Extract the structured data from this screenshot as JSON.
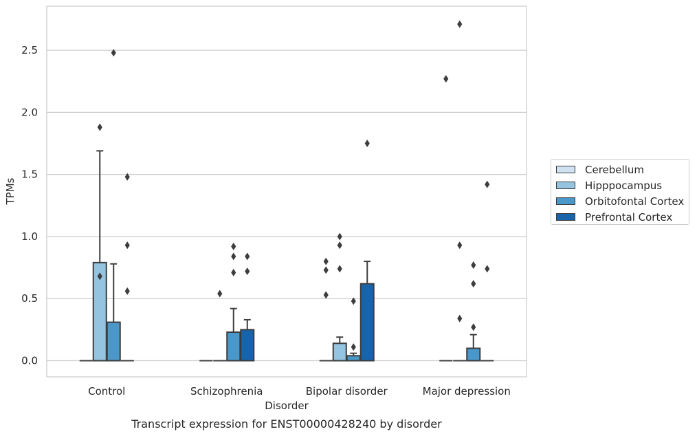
{
  "chart_data": {
    "type": "box",
    "caption": "Transcript expression for ENST00000428240 by disorder",
    "xlabel": "Disorder",
    "ylabel": "TPMs",
    "ylim": [
      -0.13,
      2.855
    ],
    "yticks": [
      0.0,
      0.5,
      1.0,
      1.5,
      2.0,
      2.5
    ],
    "ytick_labels": [
      "0.0",
      "0.5",
      "1.0",
      "1.5",
      "2.0",
      "2.5"
    ],
    "grid": "horizontal",
    "legend_position": "right",
    "categories": [
      "Control",
      "Schizophrenia",
      "Bipolar disorder",
      "Major depression"
    ],
    "series": [
      {
        "name": "Cerebellum",
        "color": "#d0e1f2",
        "boxes": [
          {
            "q1": 0,
            "median": 0,
            "q3": 0,
            "whisker_low": 0,
            "whisker_high": 0,
            "outliers": []
          },
          {
            "q1": 0,
            "median": 0,
            "q3": 0,
            "whisker_low": 0,
            "whisker_high": 0,
            "outliers": []
          },
          {
            "q1": 0,
            "median": 0,
            "q3": 0,
            "whisker_low": 0,
            "whisker_high": 0,
            "outliers": [
              0.53,
              0.73,
              0.8
            ]
          },
          {
            "q1": 0,
            "median": 0,
            "q3": 0,
            "whisker_low": 0,
            "whisker_high": 0,
            "outliers": [
              2.27
            ]
          }
        ]
      },
      {
        "name": "Hipppocampus",
        "color": "#94c4df",
        "boxes": [
          {
            "q1": 0,
            "median": 0,
            "q3": 0.79,
            "whisker_low": 0,
            "whisker_high": 1.69,
            "outliers": [
              0.68,
              1.88
            ]
          },
          {
            "q1": 0,
            "median": 0,
            "q3": 0,
            "whisker_low": 0,
            "whisker_high": 0,
            "outliers": [
              0.54
            ]
          },
          {
            "q1": 0,
            "median": 0,
            "q3": 0.14,
            "whisker_low": 0,
            "whisker_high": 0.19,
            "outliers": [
              0.74,
              0.93,
              1.0
            ]
          },
          {
            "q1": 0,
            "median": 0,
            "q3": 0,
            "whisker_low": 0,
            "whisker_high": 0,
            "outliers": [
              0.34,
              0.93,
              2.71
            ]
          }
        ]
      },
      {
        "name": "Orbitofontal Cortex",
        "color": "#4a98c9",
        "boxes": [
          {
            "q1": 0,
            "median": 0,
            "q3": 0.31,
            "whisker_low": 0,
            "whisker_high": 0.78,
            "outliers": [
              2.48
            ]
          },
          {
            "q1": 0,
            "median": 0,
            "q3": 0.23,
            "whisker_low": 0,
            "whisker_high": 0.42,
            "outliers": [
              0.71,
              0.84,
              0.92
            ]
          },
          {
            "q1": 0,
            "median": 0,
            "q3": 0.04,
            "whisker_low": 0,
            "whisker_high": 0.06,
            "outliers": [
              0.11,
              0.48
            ]
          },
          {
            "q1": 0,
            "median": 0,
            "q3": 0.1,
            "whisker_low": 0,
            "whisker_high": 0.21,
            "outliers": [
              0.27,
              0.62,
              0.77
            ]
          }
        ]
      },
      {
        "name": "Prefrontal Cortex",
        "color": "#1764ab",
        "boxes": [
          {
            "q1": 0,
            "median": 0,
            "q3": 0,
            "whisker_low": 0,
            "whisker_high": 0,
            "outliers": [
              0.56,
              0.93,
              1.48
            ]
          },
          {
            "q1": 0,
            "median": 0,
            "q3": 0.25,
            "whisker_low": 0,
            "whisker_high": 0.33,
            "outliers": [
              0.72,
              0.84
            ]
          },
          {
            "q1": 0,
            "median": 0,
            "q3": 0.62,
            "whisker_low": 0,
            "whisker_high": 0.8,
            "outliers": [
              1.75
            ]
          },
          {
            "q1": 0,
            "median": 0,
            "q3": 0,
            "whisker_low": 0,
            "whisker_high": 0,
            "outliers": [
              0.74,
              1.42
            ]
          }
        ]
      }
    ]
  }
}
